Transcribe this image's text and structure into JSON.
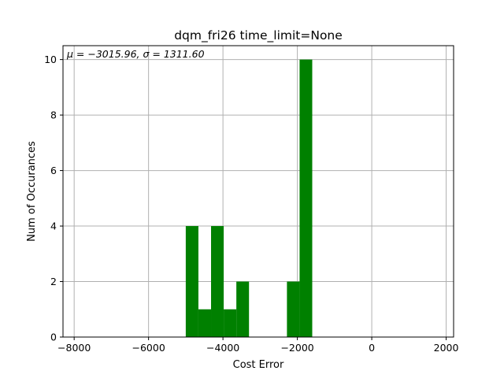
{
  "chart_data": {
    "type": "bar",
    "title": "dqm_fri26 time_limit=None",
    "xlabel": "Cost Error",
    "ylabel": "Num of Occurances",
    "annotation": "μ = −3015.96,  σ = 1311.60",
    "xlim": [
      -8300,
      2200
    ],
    "ylim": [
      0,
      10.5
    ],
    "xticks": [
      -8000,
      -6000,
      -4000,
      -2000,
      0,
      2000
    ],
    "xtick_labels": [
      "−8000",
      "−6000",
      "−4000",
      "−2000",
      "0",
      "2000"
    ],
    "yticks": [
      0,
      2,
      4,
      6,
      8,
      10
    ],
    "ytick_labels": [
      "0",
      "2",
      "4",
      "6",
      "8",
      "10"
    ],
    "grid": true,
    "bar_color": "#008000",
    "bins": [
      {
        "start": -5000,
        "end": -4660,
        "count": 4
      },
      {
        "start": -4660,
        "end": -4320,
        "count": 1
      },
      {
        "start": -4320,
        "end": -3980,
        "count": 4
      },
      {
        "start": -3980,
        "end": -3640,
        "count": 1
      },
      {
        "start": -3640,
        "end": -3300,
        "count": 2
      },
      {
        "start": -2280,
        "end": -1940,
        "count": 2
      },
      {
        "start": -1940,
        "end": -1600,
        "count": 10
      }
    ]
  }
}
